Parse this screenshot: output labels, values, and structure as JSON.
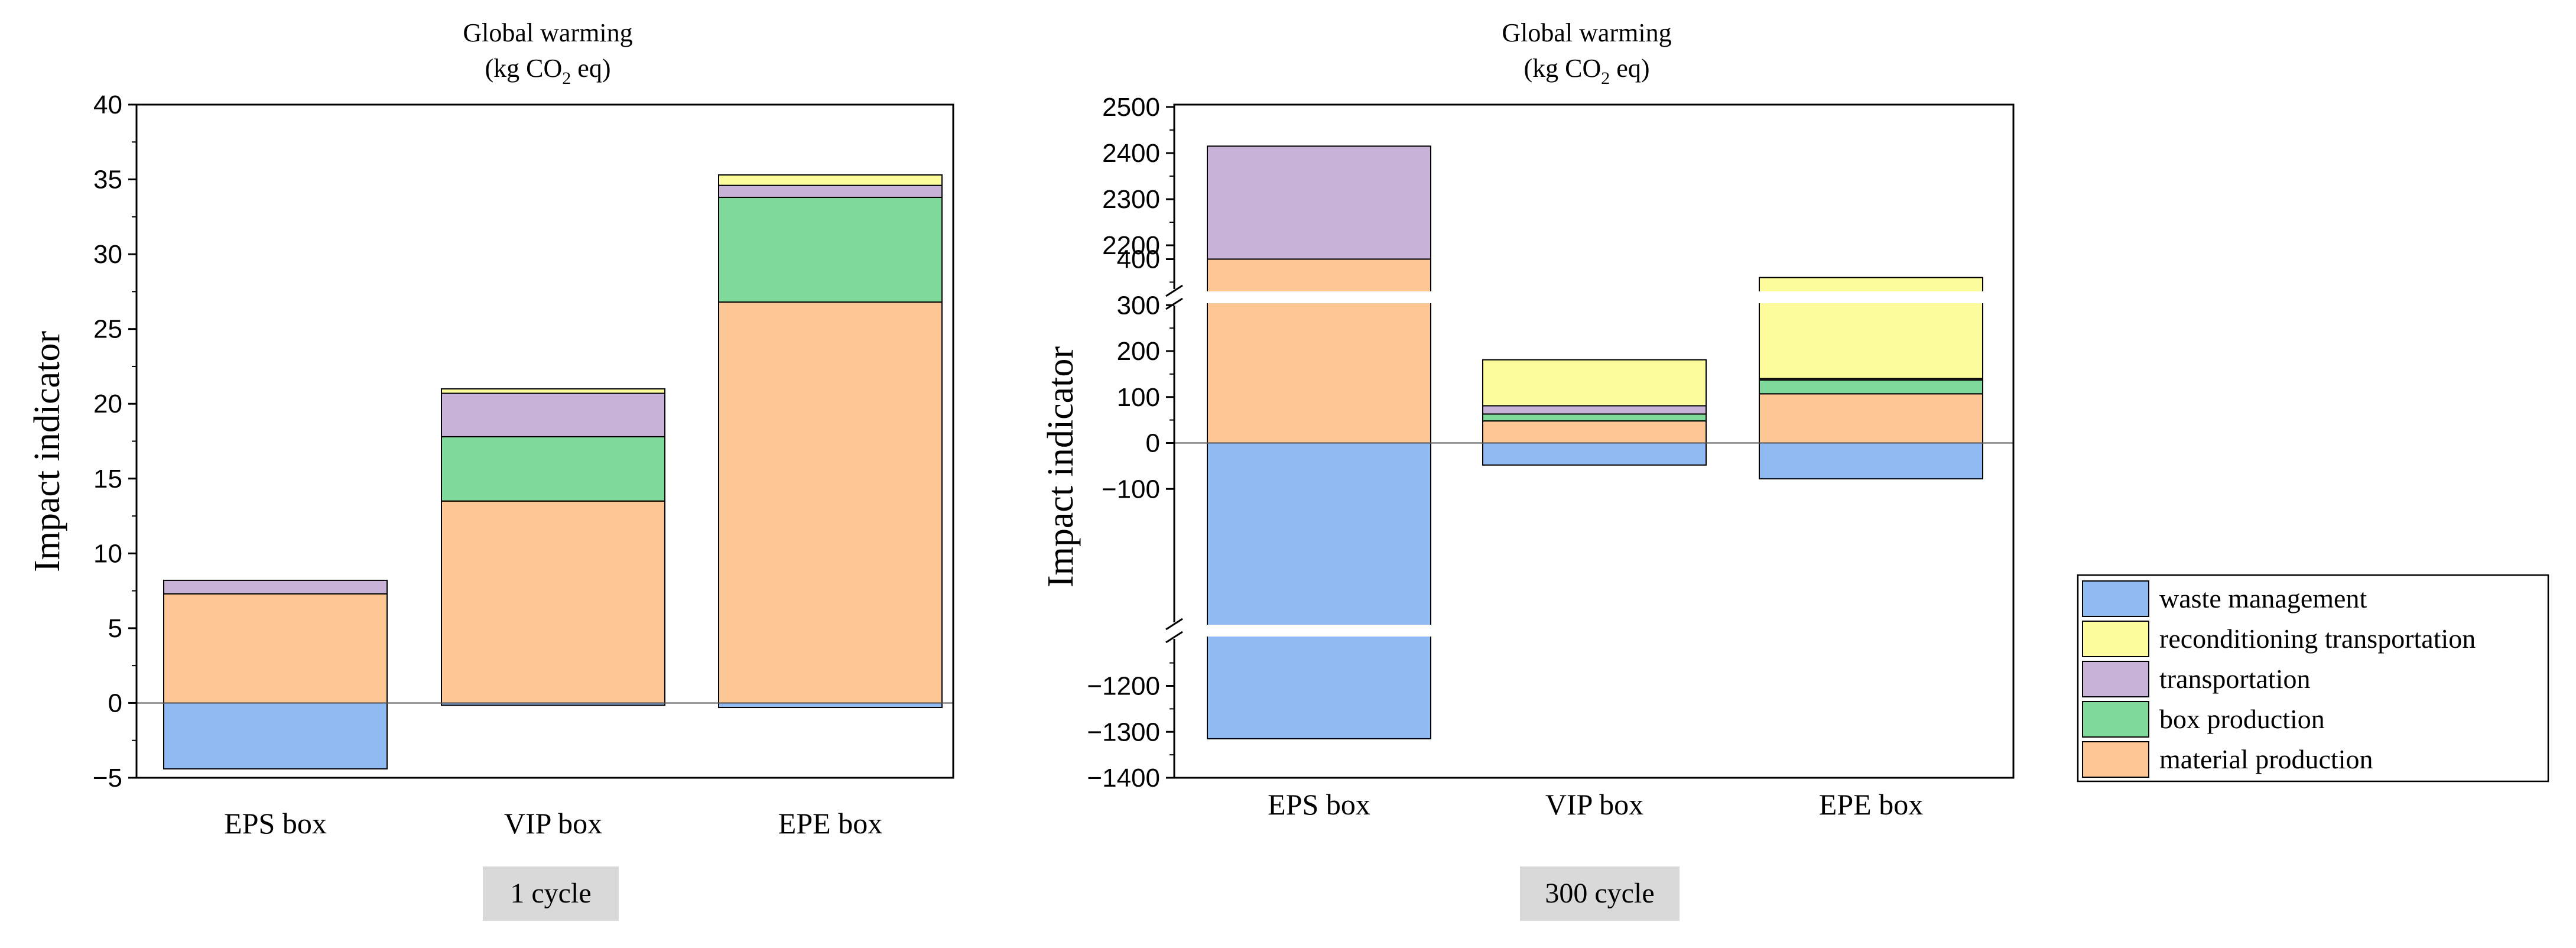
{
  "colors": {
    "waste_management": "#8fbaf2",
    "reconditioning_transportation": "#fdfc9c",
    "transportation": "#c9b2d7",
    "box_production": "#7fd99b",
    "material_production": "#fdc795",
    "caption_bg": "#d9d9d9"
  },
  "legend": {
    "items": [
      {
        "key": "waste_management",
        "label": "waste management"
      },
      {
        "key": "reconditioning_transportation",
        "label": "reconditioning transportation"
      },
      {
        "key": "transportation",
        "label": "transportation"
      },
      {
        "key": "box_production",
        "label": "box production"
      },
      {
        "key": "material_production",
        "label": "material production"
      }
    ]
  },
  "chart_data": [
    {
      "type": "bar",
      "stacked": true,
      "title": "Global warming",
      "subtitle_prefix": "(kg CO",
      "subtitle_sub": "2",
      "subtitle_suffix": " eq)",
      "ylabel": "Impact indicator",
      "caption": "1 cycle",
      "categories": [
        "EPS box",
        "VIP box",
        "EPE box"
      ],
      "ylim": [
        -5,
        40
      ],
      "yticks": [
        -5,
        0,
        5,
        10,
        15,
        20,
        25,
        30,
        35,
        40
      ],
      "ytick_labels": [
        "−5",
        "0",
        "5",
        "10",
        "15",
        "20",
        "25",
        "30",
        "35",
        "40"
      ],
      "series": [
        {
          "key": "waste_management",
          "name": "waste management",
          "values": [
            -4.4,
            -0.15,
            -0.3
          ]
        },
        {
          "key": "material_production",
          "name": "material production",
          "values": [
            7.3,
            13.5,
            26.8
          ]
        },
        {
          "key": "box_production",
          "name": "box production",
          "values": [
            0,
            4.3,
            7.0
          ]
        },
        {
          "key": "transportation",
          "name": "transportation",
          "values": [
            0.9,
            2.9,
            0.8
          ]
        },
        {
          "key": "reconditioning_transportation",
          "name": "reconditioning transportation",
          "values": [
            0,
            0.3,
            0.7
          ]
        }
      ]
    },
    {
      "type": "bar",
      "stacked": true,
      "title": "Global warming",
      "subtitle_prefix": "(kg CO",
      "subtitle_sub": "2",
      "subtitle_suffix": " eq)",
      "ylabel": "Impact indicator",
      "caption": "300 cycle",
      "categories": [
        "EPS box",
        "VIP box",
        "EPE box"
      ],
      "axis_breaks": [
        [
          -1100,
          -200
        ],
        [
          500,
          2150
        ]
      ],
      "yticks": [
        -1400,
        -1300,
        -1200,
        -100,
        0,
        100,
        200,
        300,
        400,
        2200,
        2300,
        2400,
        2500
      ],
      "ytick_labels": [
        "−1400",
        "−1300",
        "−1200",
        "−100",
        "0",
        "100",
        "200",
        "300",
        "400",
        "2200",
        "2300",
        "2400",
        "2500"
      ],
      "series": [
        {
          "key": "waste_management",
          "name": "waste management",
          "values": [
            -1315,
            -48,
            -78
          ]
        },
        {
          "key": "material_production",
          "name": "material production",
          "values": [
            2170,
            48,
            107
          ]
        },
        {
          "key": "box_production",
          "name": "box production",
          "values": [
            0,
            15,
            30
          ]
        },
        {
          "key": "transportation",
          "name": "transportation",
          "values": [
            245,
            18,
            3
          ]
        },
        {
          "key": "reconditioning_transportation",
          "name": "reconditioning transportation",
          "values": [
            0,
            100,
            220
          ]
        }
      ]
    }
  ]
}
